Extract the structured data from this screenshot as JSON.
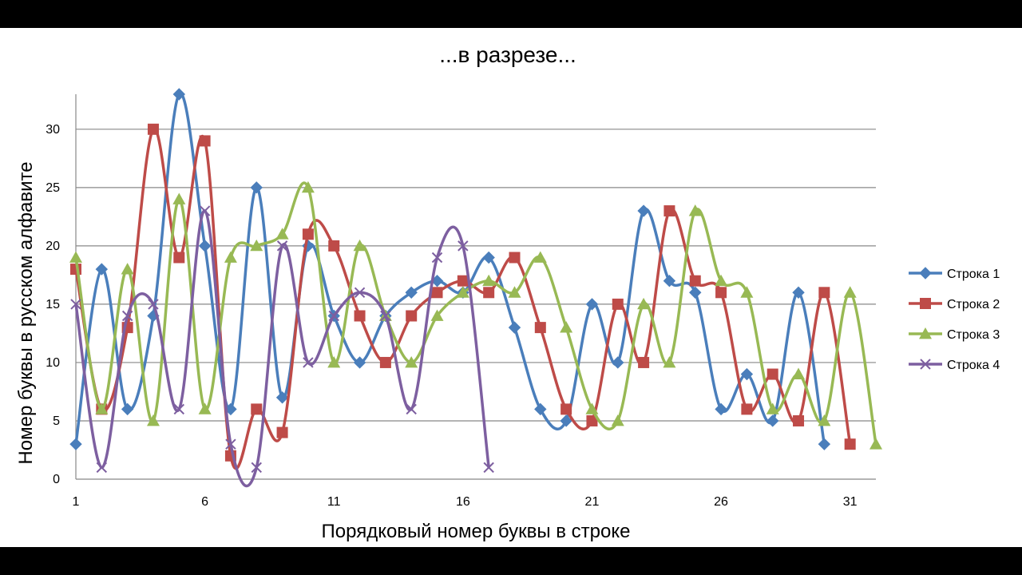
{
  "chart_data": {
    "type": "line",
    "title": "...в разрезе...",
    "xlabel": "Порядковый номер буквы в строке",
    "ylabel": "Номер буквы в русском алфавите",
    "x_ticks": [
      1,
      6,
      11,
      16,
      21,
      26,
      31
    ],
    "y_ticks": [
      0,
      5,
      10,
      15,
      20,
      25,
      30
    ],
    "xlim": [
      1,
      32
    ],
    "ylim": [
      0,
      33
    ],
    "grid": "horizontal",
    "legend_position": "right",
    "series": [
      {
        "name": "Строка 1",
        "color": "#4A7EBB",
        "marker": "diamond",
        "x": [
          1,
          2,
          3,
          4,
          5,
          6,
          7,
          8,
          9,
          10,
          11,
          12,
          13,
          14,
          15,
          16,
          17,
          18,
          19,
          20,
          21,
          22,
          23,
          24,
          25,
          26,
          27,
          28,
          29,
          30
        ],
        "values": [
          3,
          18,
          6,
          14,
          33,
          20,
          6,
          25,
          7,
          20,
          14,
          10,
          14,
          16,
          17,
          16,
          19,
          13,
          6,
          5,
          15,
          10,
          23,
          17,
          16,
          6,
          9,
          5,
          16,
          3
        ]
      },
      {
        "name": "Строка 2",
        "color": "#BE4B48",
        "marker": "square",
        "x": [
          1,
          2,
          3,
          4,
          5,
          6,
          7,
          8,
          9,
          10,
          11,
          12,
          13,
          14,
          15,
          16,
          17,
          18,
          19,
          20,
          21,
          22,
          23,
          24,
          25,
          26,
          27,
          28,
          29,
          30,
          31
        ],
        "values": [
          18,
          6,
          13,
          30,
          19,
          29,
          2,
          6,
          4,
          21,
          20,
          14,
          10,
          14,
          16,
          17,
          16,
          19,
          13,
          6,
          5,
          15,
          10,
          23,
          17,
          16,
          6,
          9,
          5,
          16,
          3
        ]
      },
      {
        "name": "Строка 3",
        "color": "#98B954",
        "marker": "triangle",
        "x": [
          1,
          2,
          3,
          4,
          5,
          6,
          7,
          8,
          9,
          10,
          11,
          12,
          13,
          14,
          15,
          16,
          17,
          18,
          19,
          20,
          21,
          22,
          23,
          24,
          25,
          26,
          27,
          28,
          29,
          30,
          31,
          32
        ],
        "values": [
          19,
          6,
          18,
          5,
          24,
          6,
          19,
          20,
          21,
          25,
          10,
          20,
          14,
          10,
          14,
          16,
          17,
          16,
          19,
          13,
          6,
          5,
          15,
          10,
          23,
          17,
          16,
          6,
          9,
          5,
          16,
          3
        ]
      },
      {
        "name": "Строка 4",
        "color": "#7D5FA0",
        "marker": "x",
        "x": [
          1,
          2,
          3,
          4,
          5,
          6,
          7,
          8,
          9,
          10,
          11,
          12,
          13,
          14,
          15,
          16,
          17
        ],
        "values": [
          15,
          1,
          14,
          15,
          6,
          23,
          3,
          1,
          20,
          10,
          14,
          16,
          14,
          6,
          19,
          20,
          1
        ]
      }
    ]
  }
}
